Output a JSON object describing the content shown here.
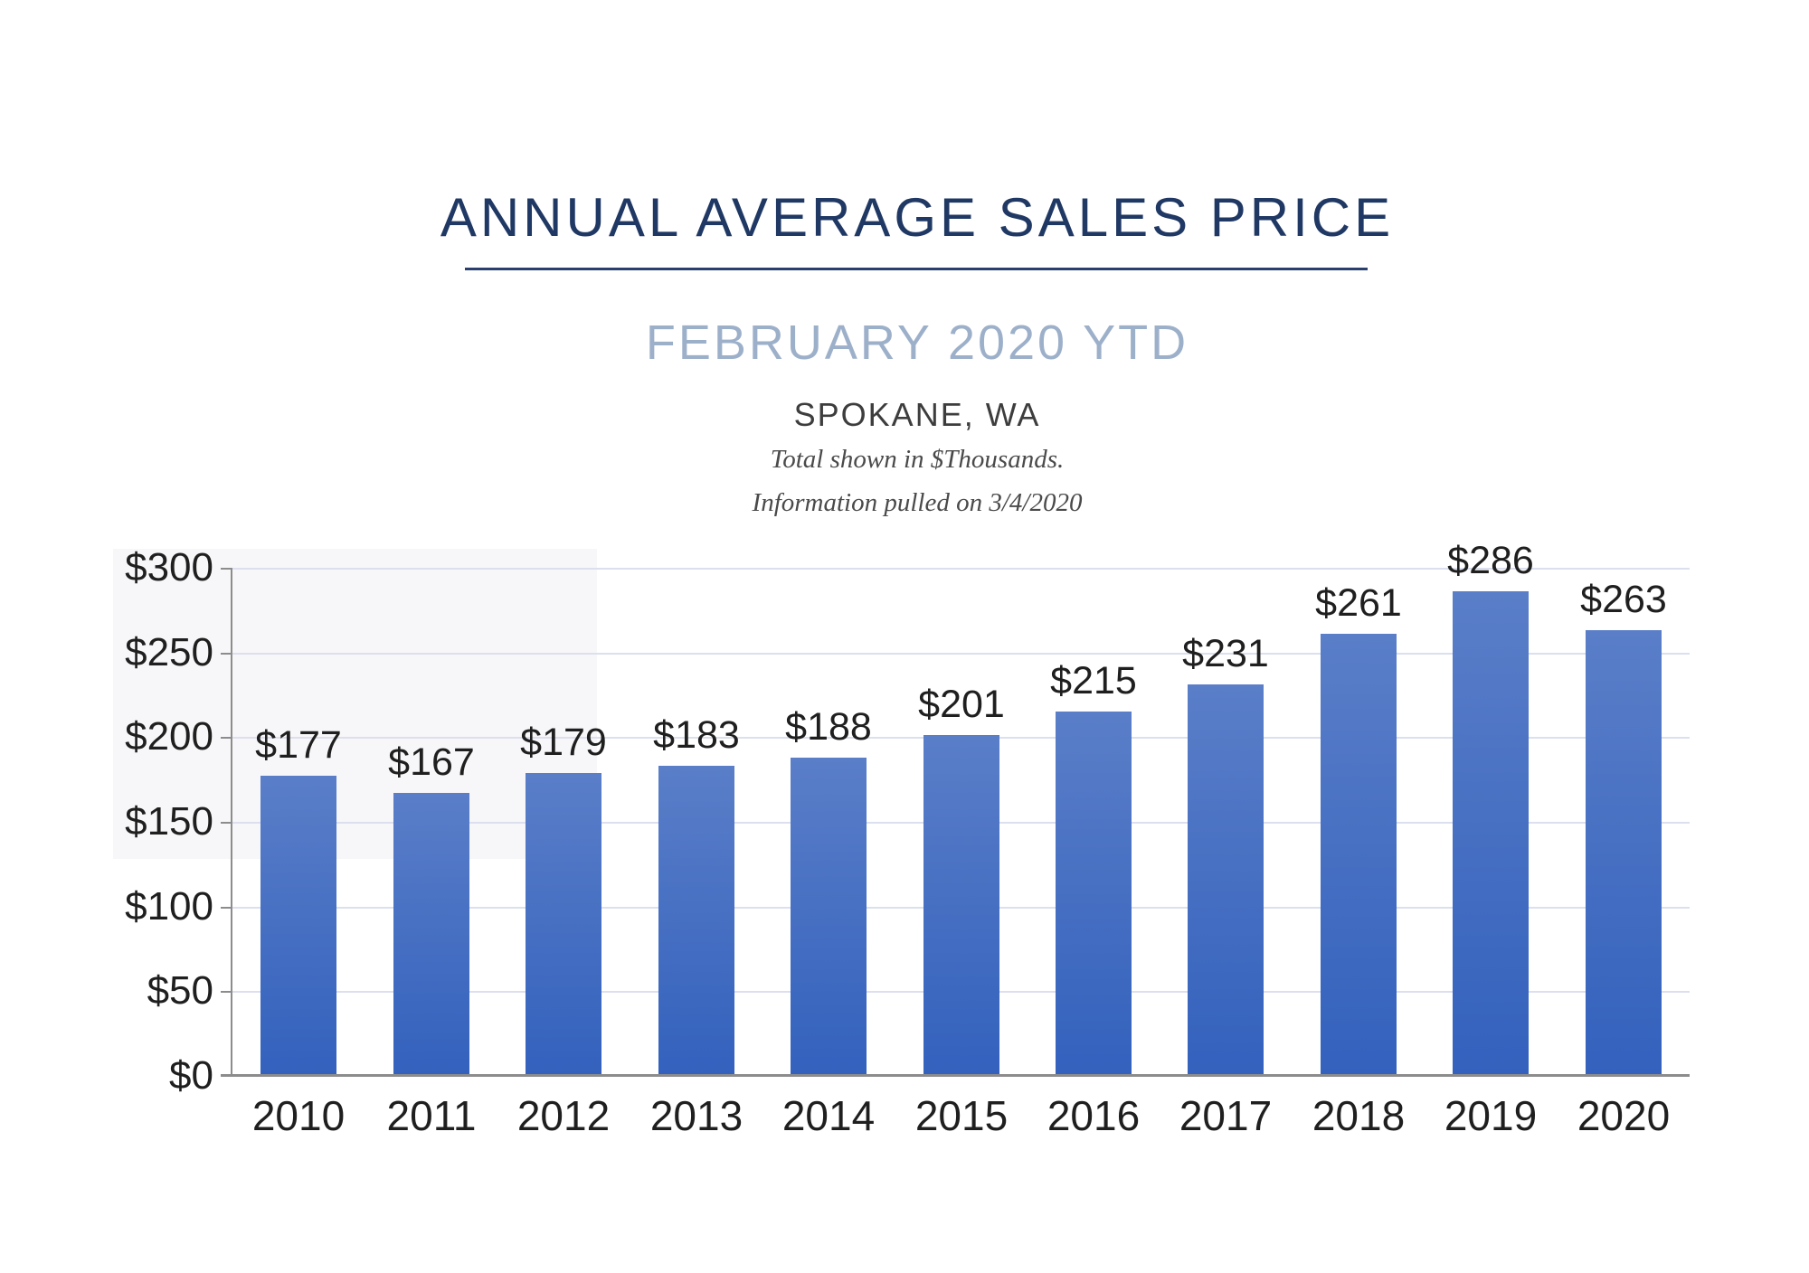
{
  "header": {
    "title": "ANNUAL AVERAGE SALES PRICE",
    "subtitle": "FEBRUARY 2020 YTD",
    "location": "SPOKANE, WA",
    "note_line1": "Total shown in $Thousands.",
    "note_line2": "Information pulled on 3/4/2020"
  },
  "chart_data": {
    "type": "bar",
    "title": "Annual Average Sales Price — February 2020 YTD, Spokane, WA",
    "units": "$ Thousands",
    "categories": [
      "2010",
      "2011",
      "2012",
      "2013",
      "2014",
      "2015",
      "2016",
      "2017",
      "2018",
      "2019",
      "2020"
    ],
    "values": [
      177,
      167,
      179,
      183,
      188,
      201,
      215,
      231,
      261,
      286,
      263
    ],
    "value_labels": [
      "$177",
      "$167",
      "$179",
      "$183",
      "$188",
      "$201",
      "$215",
      "$231",
      "$261",
      "$286",
      "$263"
    ],
    "y_ticks": [
      "$0",
      "$50",
      "$100",
      "$150",
      "$200",
      "$250",
      "$300"
    ],
    "y_tick_values": [
      0,
      50,
      100,
      150,
      200,
      250,
      300
    ],
    "ylim": [
      0,
      300
    ],
    "grid": true,
    "legend": "none",
    "xlabel": "",
    "ylabel": "",
    "colors": {
      "bar_gradient_top": "#5a7ec8",
      "bar_gradient_bottom": "#3361bd",
      "gridline": "#dcdfee",
      "axis": "#8c8c8c",
      "title_navy": "#1f3864",
      "subtitle_bluegray": "#9db0ca",
      "text_dark": "#1f1f1f"
    }
  }
}
